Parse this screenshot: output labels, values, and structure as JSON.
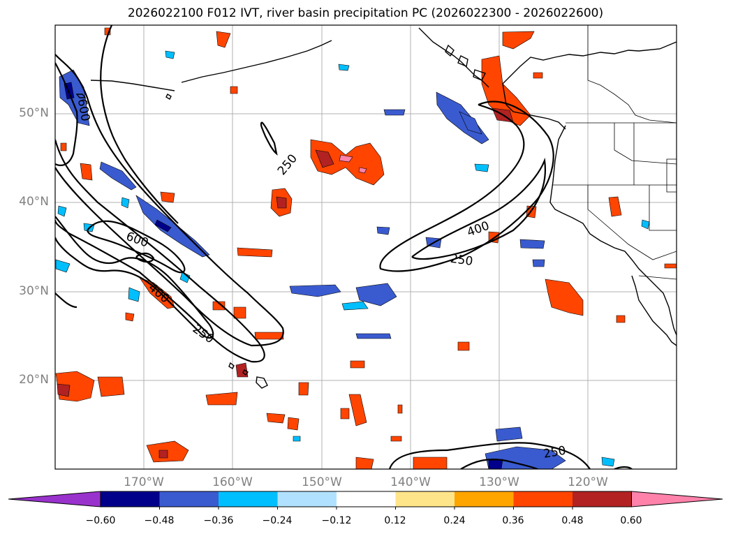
{
  "title": "2026022100 F012 IVT, river basin precipitation PC (2026022300 - 2026022600)",
  "latitude_labels": [
    "50°N",
    "40°N",
    "30°N",
    "20°N"
  ],
  "longitude_labels": [
    "170°W",
    "160°W",
    "150°W",
    "140°W",
    "130°W",
    "120°W"
  ],
  "ivt_contour_labels": [
    "600",
    "250",
    "600",
    "400",
    "250",
    "400",
    "250",
    "250"
  ],
  "colorbar": {
    "colors": [
      "#9932CC",
      "#00008B",
      "#3A5BCF",
      "#00BFFF",
      "#B0E2FF",
      "#FFFFFF",
      "#FFE58A",
      "#FFA500",
      "#FF4500",
      "#B22222",
      "#FF82AB"
    ],
    "tick_labels": [
      "−0.60",
      "−0.48",
      "−0.36",
      "−0.24",
      "−0.12",
      "0.12",
      "0.24",
      "0.36",
      "0.48",
      "0.60"
    ]
  }
}
